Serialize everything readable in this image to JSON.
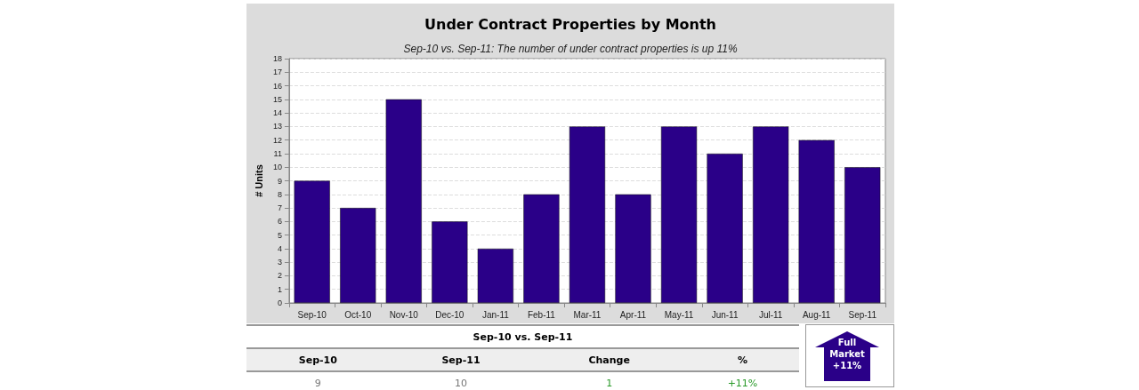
{
  "chart_data": {
    "type": "bar",
    "title": "Under Contract Properties by Month",
    "subtitle": "Sep-10 vs. Sep-11: The number of under contract properties is up 11%",
    "ylabel": "# Units",
    "categories": [
      "Sep-10",
      "Oct-10",
      "Nov-10",
      "Dec-10",
      "Jan-11",
      "Feb-11",
      "Mar-11",
      "Apr-11",
      "May-11",
      "Jun-11",
      "Jul-11",
      "Aug-11",
      "Sep-11"
    ],
    "values": [
      9,
      7,
      15,
      6,
      4,
      8,
      13,
      8,
      13,
      11,
      13,
      12,
      10
    ],
    "color": "#2a0088",
    "ylim": [
      0,
      18
    ],
    "yticks": [
      0,
      1,
      2,
      3,
      4,
      5,
      6,
      7,
      8,
      9,
      10,
      11,
      12,
      13,
      14,
      15,
      16,
      17,
      18
    ],
    "grid": "y",
    "annotations": [
      "Sep-10 vs. Sep-11",
      "Sep-10",
      "Sep-11",
      "Change",
      "%",
      "9",
      "10",
      "1",
      "+11%",
      "Full Market +11%"
    ]
  }
}
